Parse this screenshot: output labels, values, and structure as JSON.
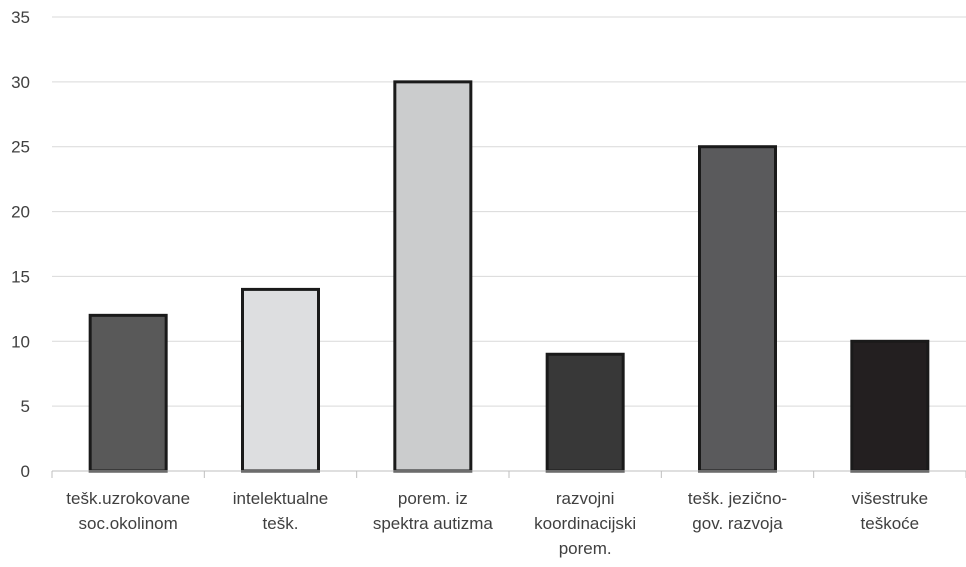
{
  "chart_data": {
    "type": "bar",
    "categories": [
      [
        "tešk.uzrokovane",
        "soc.okolinom"
      ],
      [
        "intelektualne",
        "tešk."
      ],
      [
        "porem. iz",
        "spektra autizma"
      ],
      [
        "razvojni",
        "koordinacijski",
        "porem."
      ],
      [
        "tešk. jezično-",
        "gov. razvoja"
      ],
      [
        "višestruke",
        "teškoće"
      ]
    ],
    "values": [
      12,
      14,
      30,
      9,
      25,
      10
    ],
    "colors": [
      "#595959",
      "#dddee0",
      "#cbcccd",
      "#383838",
      "#5a5a5c",
      "#231f20"
    ],
    "title": "",
    "xlabel": "",
    "ylabel": "",
    "ylim": [
      0,
      35
    ],
    "yticks": [
      "0",
      "5",
      "10",
      "15",
      "20",
      "25",
      "30",
      "35"
    ],
    "grid": true,
    "legend": "none"
  }
}
